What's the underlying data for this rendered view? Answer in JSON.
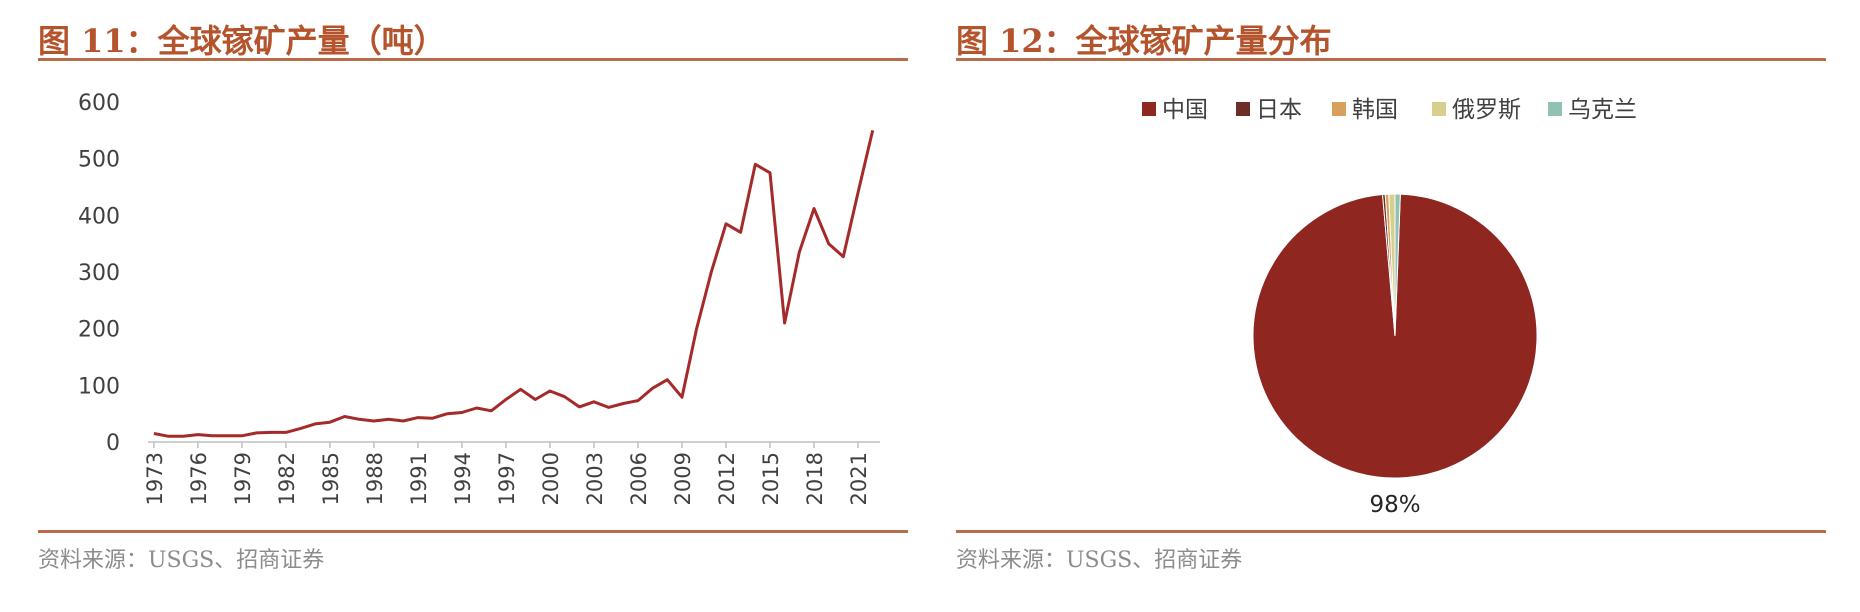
{
  "left": {
    "title": "图 11：全球镓矿产量（吨）",
    "source": "资料来源：USGS、招商证券"
  },
  "right": {
    "title": "图 12：全球镓矿产量分布",
    "source": "资料来源：USGS、招商证券"
  },
  "chart_data": [
    {
      "type": "line",
      "title": "图 11：全球镓矿产量（吨）",
      "xlabel": "",
      "ylabel": "",
      "ylim": [
        0,
        600
      ],
      "yticks": [
        "0",
        "100",
        "200",
        "300",
        "400",
        "500",
        "600"
      ],
      "xtick_labels": [
        "1973",
        "1976",
        "1979",
        "1982",
        "1985",
        "1988",
        "1991",
        "1994",
        "1997",
        "2000",
        "2003",
        "2006",
        "2009",
        "2012",
        "2015",
        "2018",
        "2021"
      ],
      "color": "#a52a2a",
      "x": [
        1973,
        1974,
        1975,
        1976,
        1977,
        1978,
        1979,
        1980,
        1981,
        1982,
        1983,
        1984,
        1985,
        1986,
        1987,
        1988,
        1989,
        1990,
        1991,
        1992,
        1993,
        1994,
        1995,
        1996,
        1997,
        1998,
        1999,
        2000,
        2001,
        2002,
        2003,
        2004,
        2005,
        2006,
        2007,
        2008,
        2009,
        2010,
        2011,
        2012,
        2013,
        2014,
        2015,
        2016,
        2017,
        2018,
        2019,
        2020,
        2021,
        2022
      ],
      "y": [
        15,
        10,
        10,
        13,
        11,
        11,
        11,
        16,
        17,
        17,
        24,
        32,
        35,
        45,
        40,
        37,
        40,
        37,
        43,
        42,
        50,
        52,
        60,
        55,
        75,
        93,
        75,
        90,
        80,
        62,
        71,
        61,
        68,
        73,
        95,
        110,
        79,
        200,
        300,
        385,
        370,
        490,
        475,
        210,
        335,
        412,
        350,
        327,
        440,
        550
      ]
    },
    {
      "type": "pie",
      "title": "图 12：全球镓矿产量分布",
      "labels": [
        "中国",
        "日本",
        "韩国",
        "俄罗斯",
        "乌克兰"
      ],
      "values": [
        98.0,
        0.3,
        0.4,
        0.7,
        0.6
      ],
      "colors": [
        "#8f2620",
        "#6b2f26",
        "#d9a05b",
        "#d6cf8e",
        "#8fc1b5"
      ],
      "data_labels": [
        "98%"
      ],
      "legend": "top"
    }
  ]
}
